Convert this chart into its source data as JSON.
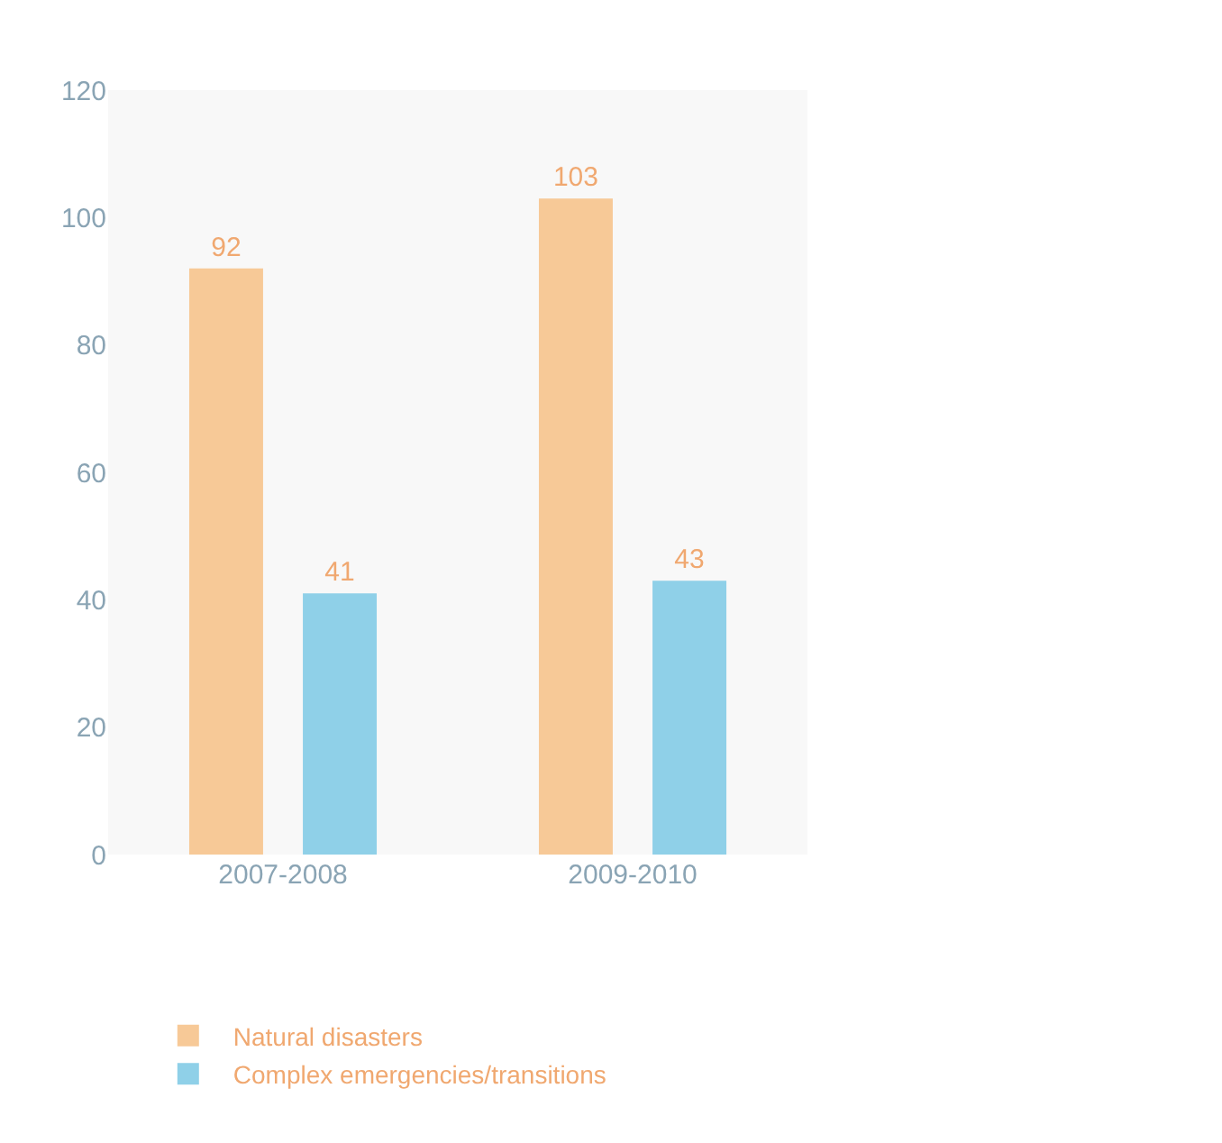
{
  "chart_data": {
    "type": "bar",
    "categories": [
      "2007-2008",
      "2009-2010"
    ],
    "series": [
      {
        "name": "Natural disasters",
        "color": "#f7c997",
        "values": [
          92,
          103
        ]
      },
      {
        "name": "Complex emergencies/transitions",
        "color": "#8fd0e8",
        "values": [
          41,
          43
        ]
      }
    ],
    "ylim": [
      0,
      120
    ],
    "yticks": [
      0,
      20,
      40,
      60,
      80,
      100,
      120
    ],
    "grid": false,
    "legend": "bottom",
    "data_labels": true
  }
}
